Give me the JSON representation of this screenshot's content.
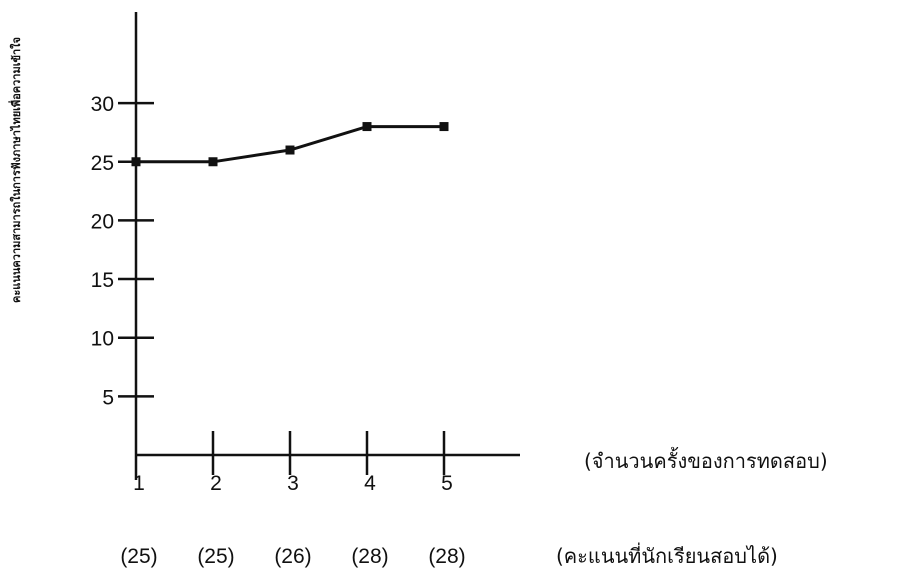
{
  "chart_data": {
    "type": "line",
    "title": "",
    "xlabel": "(จำนวนครั้งของการทดสอบ)",
    "ylabel": "คะแนนความสามารถในการฟังภาษาไทยเพื่อความเข้าใจ",
    "secondary_xlabel": "(คะแนนที่นักเรียนสอบได้)",
    "x": [
      1,
      2,
      3,
      4,
      5
    ],
    "x_tick_labels": [
      "1",
      "2",
      "3",
      "4",
      "5"
    ],
    "score_labels": [
      "(25)",
      "(25)",
      "(26)",
      "(28)",
      "(28)"
    ],
    "y_ticks": [
      5,
      10,
      15,
      20,
      25,
      30
    ],
    "y_tick_labels": [
      "5",
      "10",
      "15",
      "20",
      "25",
      "30"
    ],
    "ylim": [
      0,
      35
    ],
    "grid": false,
    "series": [
      {
        "values": [
          25,
          25,
          26,
          28,
          28
        ]
      }
    ]
  }
}
